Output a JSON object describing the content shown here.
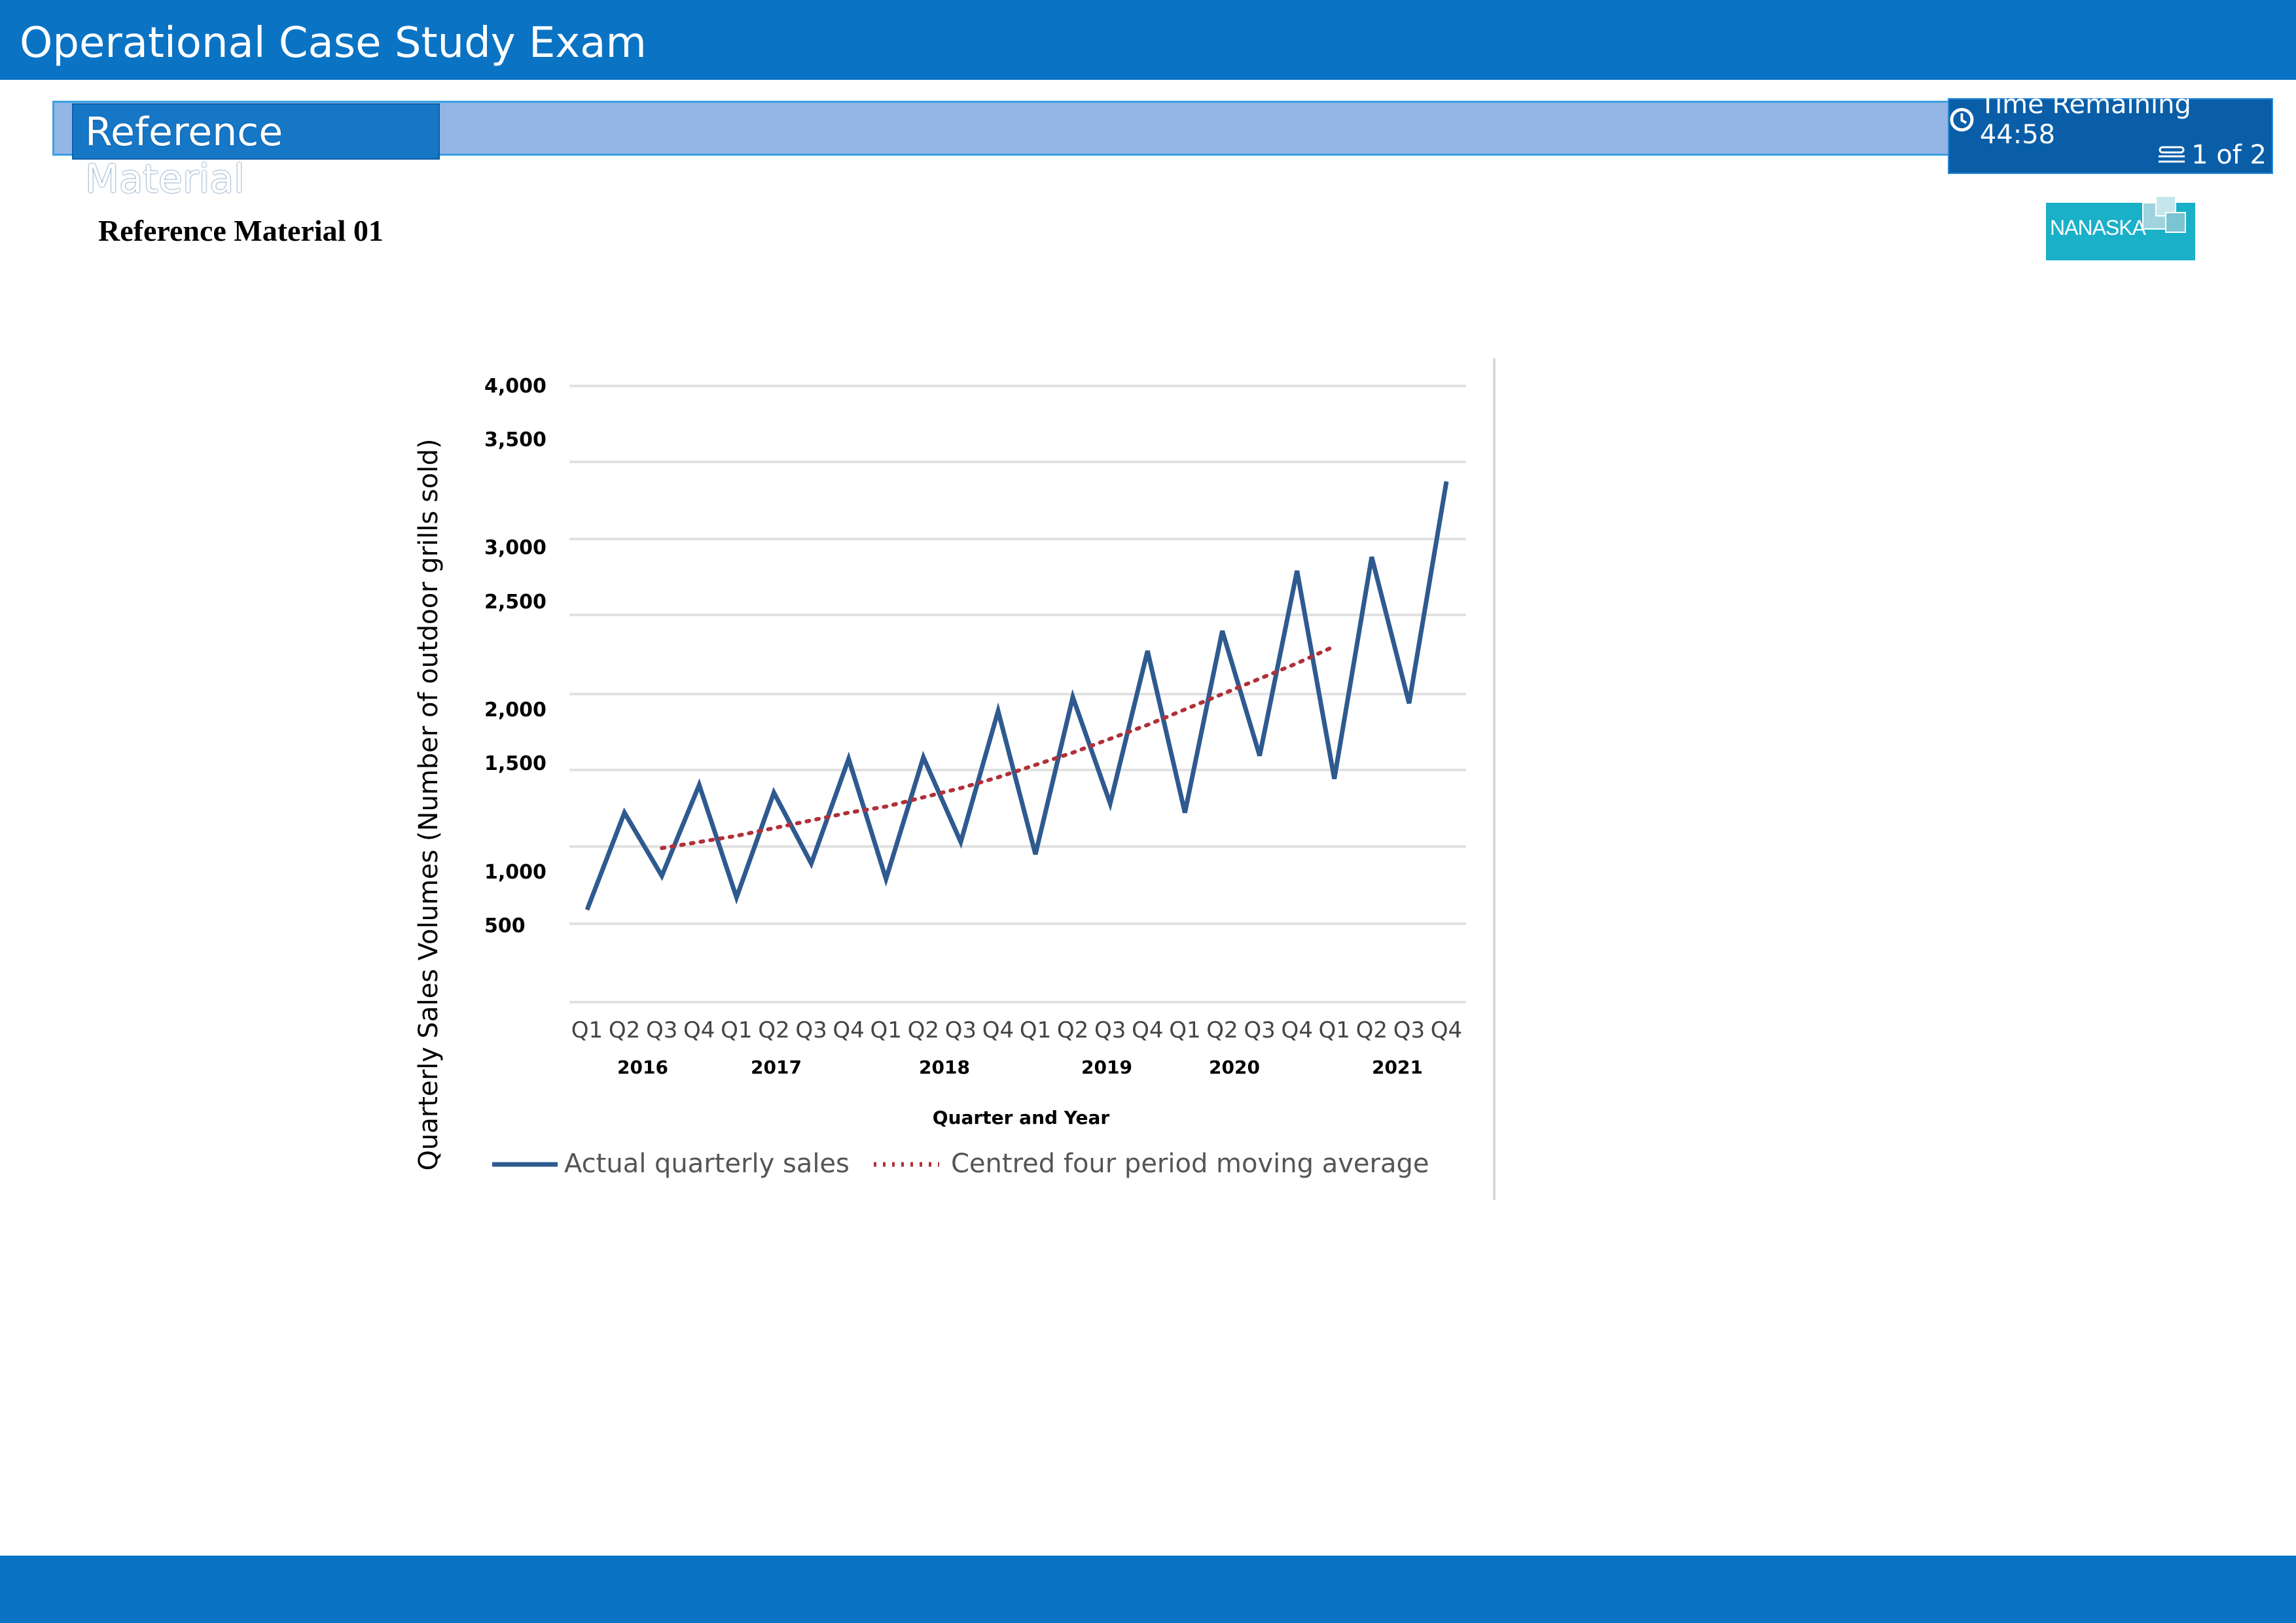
{
  "header": {
    "app_title": "Operational Case Study Exam",
    "section_title": "Reference Material",
    "timer_label": "Time Remaining 44:58",
    "page_indicator": "1 of 2",
    "timer_icon": "clock-icon",
    "page_icon": "pages-icon"
  },
  "document": {
    "heading": "Reference Material 01",
    "logo_text": "NANASKA"
  },
  "colors": {
    "header_blue": "#0a73c4",
    "section_bar": "#93b6e6",
    "actual_series": "#2e5a8f",
    "moving_average": "#b0303a",
    "logo_teal": "#1ab0c8"
  },
  "chart_data": {
    "type": "line",
    "ylabel": "Quarterly Sales Volumes (Number of outdoor grills sold)",
    "xlabel": "Quarter and Year",
    "y_tick_labels": [
      "4,000",
      "3,500",
      "3,000",
      "2,500",
      "2,000",
      "1,500",
      "1,000",
      "500"
    ],
    "ylim": [
      0,
      4000
    ],
    "grid": "horizontal",
    "legend_position": "bottom",
    "quarter_labels": [
      "Q1",
      "Q2",
      "Q3",
      "Q4",
      "Q1",
      "Q2",
      "Q3",
      "Q4",
      "Q1",
      "Q2",
      "Q3",
      "Q4",
      "Q1",
      "Q2",
      "Q3",
      "Q4",
      "Q1",
      "Q2",
      "Q3",
      "Q4",
      "Q1",
      "Q2",
      "Q3",
      "Q4"
    ],
    "year_labels": [
      "2016",
      "2017",
      "2018",
      "2019",
      "2020",
      "2021"
    ],
    "series": [
      {
        "name": "Actual quarterly sales",
        "style": "solid",
        "values": [
          600,
          1230,
          820,
          1410,
          680,
          1360,
          900,
          1580,
          800,
          1590,
          1040,
          1890,
          960,
          1980,
          1290,
          2280,
          1230,
          2410,
          1600,
          2800,
          1450,
          2890,
          1940,
          3380
        ]
      },
      {
        "name": "Centred four period moving average",
        "style": "dotted",
        "values": [
          null,
          null,
          1000,
          1040,
          1080,
          1130,
          1180,
          1230,
          1270,
          1330,
          1390,
          1460,
          1540,
          1620,
          1710,
          1800,
          1900,
          2000,
          2100,
          2200,
          2310,
          null,
          null,
          null
        ]
      }
    ]
  }
}
